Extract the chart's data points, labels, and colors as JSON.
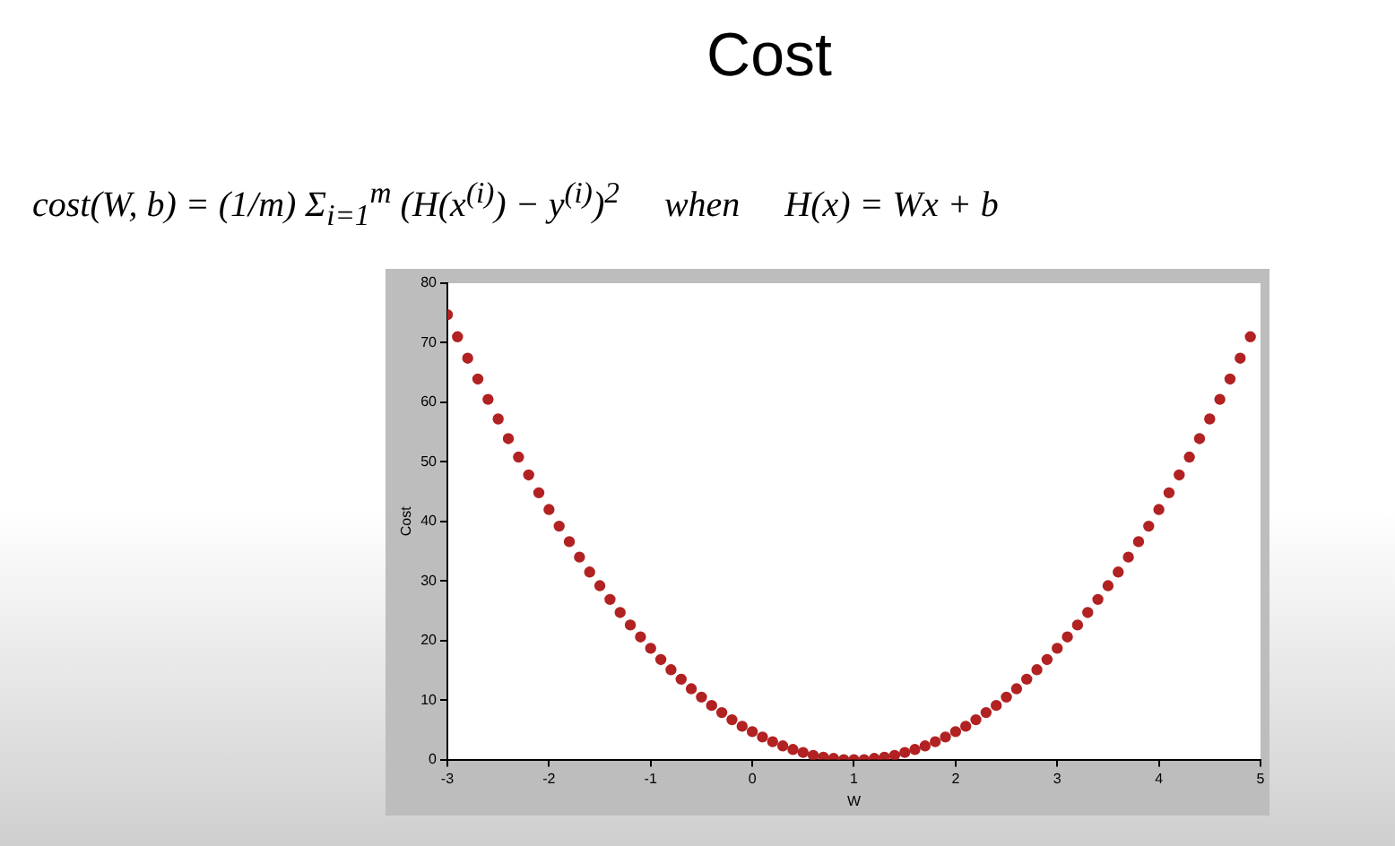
{
  "chart_data": {
    "type": "scatter",
    "title": "Cost",
    "subtitle": "cost(W, b) = (1/m) Σ$_{i=1}$$^{m}$ (H(x$^{(i)}$) − y$^{(i)}$)$^{2}$     when     H(x) = Wx + b",
    "xlabel": "W",
    "ylabel": "Cost",
    "x": [
      -3,
      -2.9,
      -2.8,
      -2.7,
      -2.6,
      -2.5,
      -2.4,
      -2.3,
      -2.2,
      -2.1,
      -2,
      -1.9,
      -1.8,
      -1.7,
      -1.6,
      -1.5,
      -1.4,
      -1.3,
      -1.2,
      -1.1,
      -1,
      -0.9,
      -0.8,
      -0.7,
      -0.6,
      -0.5,
      -0.4,
      -0.3,
      -0.2,
      -0.1,
      0,
      0.1,
      0.2,
      0.3,
      0.4,
      0.5,
      0.6,
      0.7,
      0.8,
      0.9,
      1,
      1.1,
      1.2,
      1.3,
      1.4,
      1.5,
      1.6,
      1.7,
      1.8,
      1.9,
      2,
      2.1,
      2.2,
      2.3,
      2.4,
      2.5,
      2.6,
      2.7,
      2.8,
      2.9,
      3,
      3.1,
      3.2,
      3.3,
      3.4,
      3.5,
      3.6,
      3.7,
      3.8,
      3.9,
      4,
      4.1,
      4.2,
      4.3,
      4.4,
      4.5,
      4.6,
      4.7,
      4.8,
      4.9
    ],
    "values": [
      74.7,
      71.0,
      67.4,
      63.9,
      60.5,
      57.2,
      53.9,
      50.8,
      47.8,
      44.8,
      42.0,
      39.2,
      36.6,
      34.0,
      31.5,
      29.2,
      26.9,
      24.7,
      22.6,
      20.6,
      18.7,
      16.8,
      15.1,
      13.5,
      11.9,
      10.5,
      9.1,
      7.9,
      6.7,
      5.6,
      4.7,
      3.8,
      3.0,
      2.3,
      1.7,
      1.2,
      0.7,
      0.4,
      0.2,
      0.0,
      0,
      0.0,
      0.2,
      0.4,
      0.7,
      1.2,
      1.7,
      2.3,
      3.0,
      3.8,
      4.7,
      5.6,
      6.7,
      7.9,
      9.1,
      10.5,
      11.9,
      13.5,
      15.1,
      16.8,
      18.7,
      20.6,
      22.6,
      24.7,
      26.9,
      29.2,
      31.5,
      34.0,
      36.6,
      39.2,
      42.0,
      44.8,
      47.8,
      50.8,
      53.9,
      57.2,
      60.5,
      63.9,
      67.4,
      71.0
    ],
    "color": "#b22222",
    "marker": "circle",
    "xlim": [
      -3,
      5
    ],
    "xticks": [
      -3,
      -2,
      -1,
      0,
      1,
      2,
      3,
      4,
      5
    ],
    "ylim": [
      0,
      80
    ],
    "yticks": [
      0,
      10,
      20,
      30,
      40,
      50,
      60,
      70,
      80
    ]
  }
}
